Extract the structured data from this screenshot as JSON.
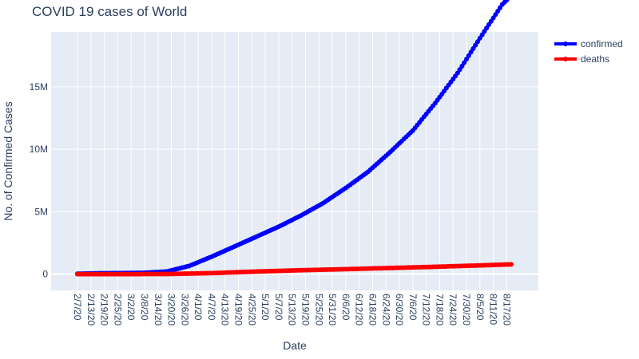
{
  "chart_data": {
    "type": "line",
    "title": "COVID 19 cases of World",
    "xlabel": "Date",
    "ylabel": "No. of Confirmed Cases",
    "x_start": "2/7/20",
    "x_end": "8/19/20",
    "x_ticks": [
      "2/7/20",
      "2/13/20",
      "2/19/20",
      "2/25/20",
      "3/2/20",
      "3/8/20",
      "3/14/20",
      "3/20/20",
      "3/26/20",
      "4/1/20",
      "4/7/20",
      "4/13/20",
      "4/19/20",
      "4/25/20",
      "5/1/20",
      "5/7/20",
      "5/13/20",
      "5/19/20",
      "5/25/20",
      "5/31/20",
      "6/6/20",
      "6/12/20",
      "6/18/20",
      "6/24/20",
      "6/30/20",
      "7/6/20",
      "7/12/20",
      "7/18/20",
      "7/24/20",
      "7/30/20",
      "8/5/20",
      "8/11/20",
      "8/17/20"
    ],
    "y_ticks": [
      {
        "value": 0,
        "label": "0"
      },
      {
        "value": 5000000,
        "label": "5M"
      },
      {
        "value": 10000000,
        "label": "10M"
      },
      {
        "value": 15000000,
        "label": "15M"
      }
    ],
    "ylim": [
      -1300000,
      19400000
    ],
    "legend_position": "top-right",
    "series": [
      {
        "name": "confirmed",
        "color": "#0000ff",
        "points": [
          [
            "2/7/20",
            31000
          ],
          [
            "2/17/20",
            71000
          ],
          [
            "2/27/20",
            83000
          ],
          [
            "3/8/20",
            110000
          ],
          [
            "3/18/20",
            215000
          ],
          [
            "3/28/20",
            660000
          ],
          [
            "4/7/20",
            1400000
          ],
          [
            "4/17/20",
            2200000
          ],
          [
            "4/27/20",
            3000000
          ],
          [
            "5/7/20",
            3800000
          ],
          [
            "5/17/20",
            4700000
          ],
          [
            "5/27/20",
            5700000
          ],
          [
            "6/6/20",
            6900000
          ],
          [
            "6/16/20",
            8200000
          ],
          [
            "6/26/20",
            9800000
          ],
          [
            "7/6/20",
            11500000
          ],
          [
            "7/16/20",
            13700000
          ],
          [
            "7/26/20",
            16100000
          ],
          [
            "8/5/20",
            18900000
          ],
          [
            "8/15/20",
            21600000
          ],
          [
            "8/19/20",
            22300000
          ]
        ]
      },
      {
        "name": "deaths",
        "color": "#ff0000",
        "points": [
          [
            "2/7/20",
            600
          ],
          [
            "2/27/20",
            2800
          ],
          [
            "3/18/20",
            9000
          ],
          [
            "4/7/20",
            82000
          ],
          [
            "4/27/20",
            211000
          ],
          [
            "5/17/20",
            315000
          ],
          [
            "6/6/20",
            400000
          ],
          [
            "6/26/20",
            495000
          ],
          [
            "7/16/20",
            590000
          ],
          [
            "8/5/20",
            700000
          ],
          [
            "8/19/20",
            785000
          ]
        ]
      }
    ]
  }
}
